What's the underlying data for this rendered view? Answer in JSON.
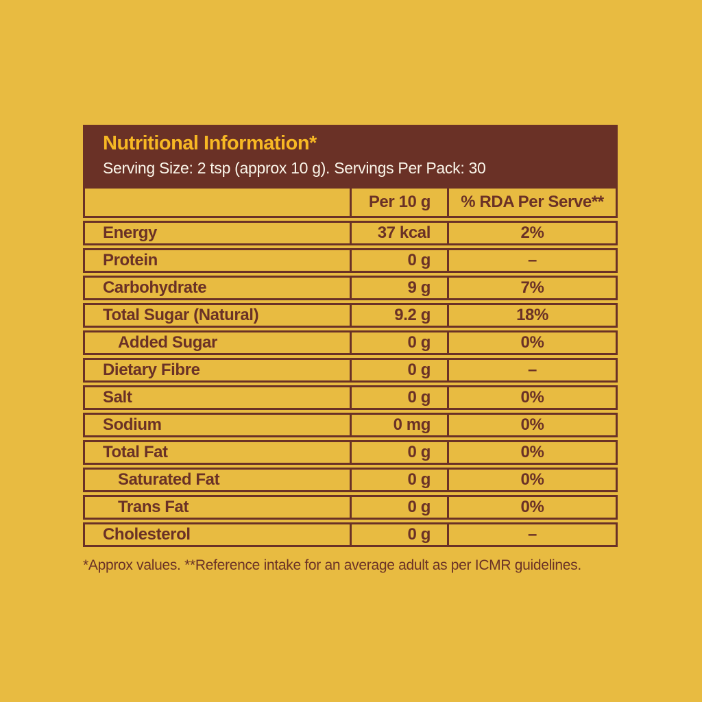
{
  "colors": {
    "background": "#E8BB41",
    "panel_brown": "#6A3126",
    "title_gold": "#F7B824",
    "serving_text": "#FBF6EA"
  },
  "header": {
    "title": "Nutritional Information*",
    "serving_line": "Serving Size: 2 tsp (approx 10 g). Servings Per Pack: 30"
  },
  "table": {
    "columns": {
      "item": "",
      "per_serving": "Per 10 g",
      "rda": "% RDA Per Serve**"
    },
    "rows": [
      {
        "label": "Energy",
        "per_serving": "37 kcal",
        "rda": "2%",
        "indent": false
      },
      {
        "label": "Protein",
        "per_serving": "0 g",
        "rda": "–",
        "indent": false
      },
      {
        "label": "Carbohydrate",
        "per_serving": "9 g",
        "rda": "7%",
        "indent": false
      },
      {
        "label": "Total Sugar (Natural)",
        "per_serving": "9.2 g",
        "rda": "18%",
        "indent": false
      },
      {
        "label": "Added Sugar",
        "per_serving": "0 g",
        "rda": "0%",
        "indent": true
      },
      {
        "label": "Dietary Fibre",
        "per_serving": "0 g",
        "rda": "–",
        "indent": false
      },
      {
        "label": "Salt",
        "per_serving": "0 g",
        "rda": "0%",
        "indent": false
      },
      {
        "label": "Sodium",
        "per_serving": "0 mg",
        "rda": "0%",
        "indent": false
      },
      {
        "label": "Total Fat",
        "per_serving": "0 g",
        "rda": "0%",
        "indent": false
      },
      {
        "label": "Saturated Fat",
        "per_serving": "0 g",
        "rda": "0%",
        "indent": true
      },
      {
        "label": "Trans Fat",
        "per_serving": "0 g",
        "rda": "0%",
        "indent": true
      },
      {
        "label": "Cholesterol",
        "per_serving": "0 g",
        "rda": "–",
        "indent": false
      }
    ]
  },
  "footnote": "*Approx values. **Reference intake for an average adult as per ICMR guidelines."
}
